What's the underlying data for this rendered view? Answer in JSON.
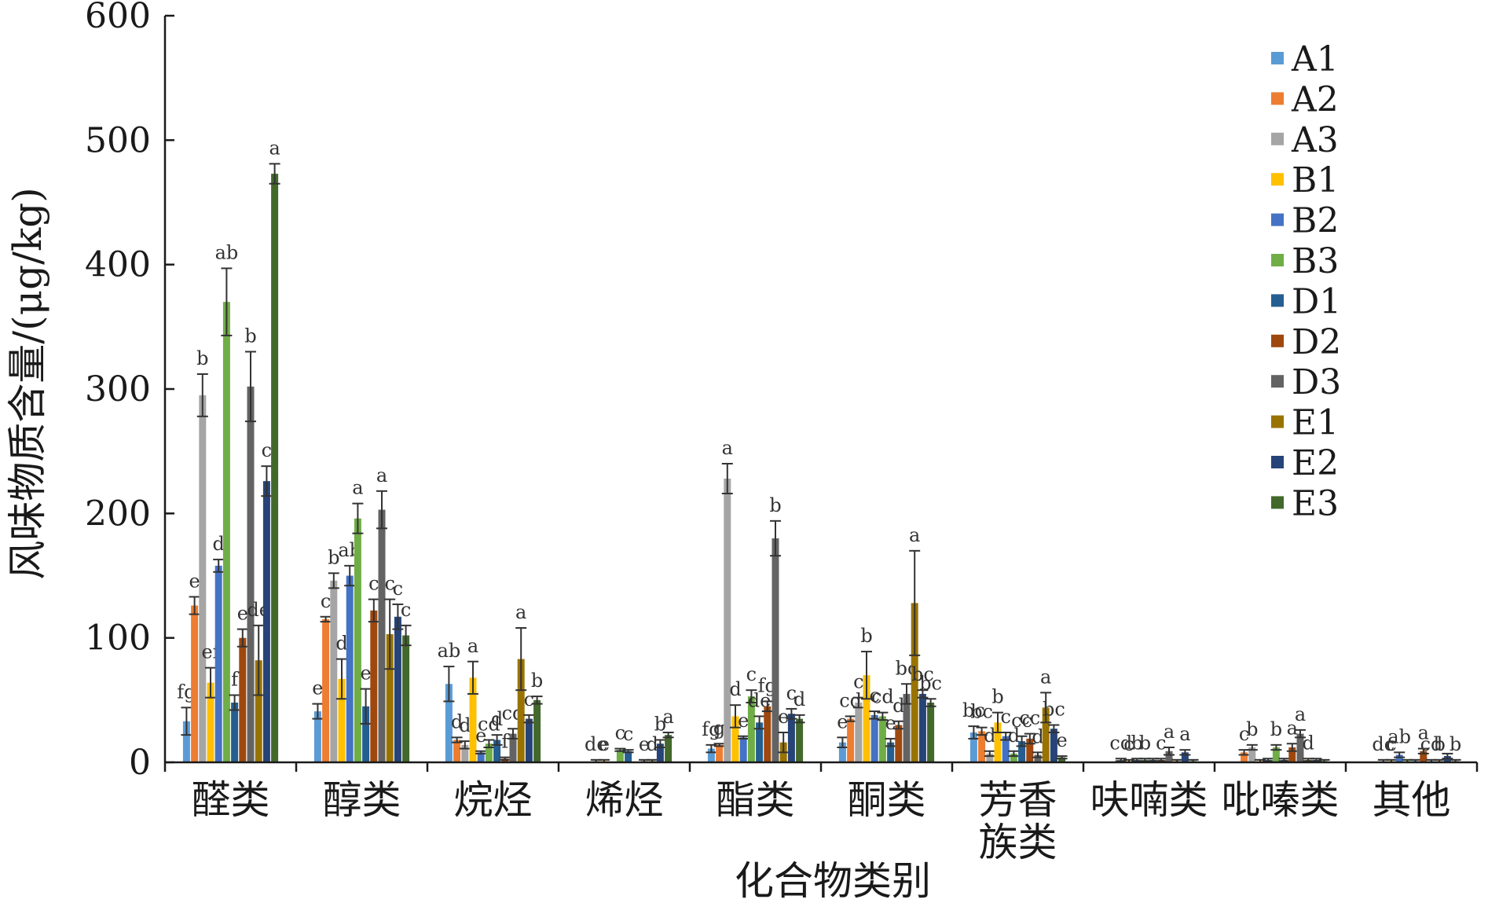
{
  "chart_data": {
    "type": "bar",
    "xlabel": "化合物类别",
    "ylabel": "风味物质含量/(μg/kg)",
    "ylim": [
      0,
      600
    ],
    "yticks": [
      0,
      100,
      200,
      300,
      400,
      500,
      600
    ],
    "grid": false,
    "legend_position": "top-right",
    "categories": [
      [
        "醛类"
      ],
      [
        "醇类"
      ],
      [
        "烷烃"
      ],
      [
        "烯烃"
      ],
      [
        "酯类"
      ],
      [
        "酮类"
      ],
      [
        "芳香",
        "族类"
      ],
      [
        "呋喃类"
      ],
      [
        "吡嗪类"
      ],
      [
        "其他"
      ]
    ],
    "series": [
      {
        "name": "A1",
        "color": "#5b9bd5",
        "values": [
          33,
          41,
          63,
          0,
          11,
          16,
          24,
          0,
          0,
          0
        ],
        "errors": [
          11,
          6,
          14,
          0,
          3,
          4,
          5,
          0,
          0,
          0
        ],
        "letters": [
          "fg",
          "e",
          "ab",
          "",
          "fg",
          "e",
          "bc",
          "",
          "",
          ""
        ]
      },
      {
        "name": "A2",
        "color": "#ed7d31",
        "values": [
          126,
          115,
          18,
          0,
          14,
          35,
          25,
          0,
          8,
          0
        ],
        "errors": [
          7,
          2,
          2,
          0,
          1,
          2,
          3,
          0,
          2,
          0
        ],
        "letters": [
          "e",
          "c",
          "d",
          "",
          "g",
          "cd",
          "bc",
          "",
          "c",
          ""
        ]
      },
      {
        "name": "A3",
        "color": "#a5a5a5",
        "values": [
          295,
          146,
          14,
          1,
          228,
          48,
          7,
          2,
          12,
          1
        ],
        "errors": [
          17,
          6,
          3,
          1,
          12,
          4,
          2,
          1,
          2,
          1
        ],
        "letters": [
          "b",
          "b",
          "d",
          "de",
          "a",
          "c",
          "d",
          "cd",
          "b",
          "dc"
        ]
      },
      {
        "name": "B1",
        "color": "#ffc000",
        "values": [
          64,
          67,
          68,
          1,
          37,
          70,
          32,
          1,
          1,
          1
        ],
        "errors": [
          12,
          16,
          13,
          1,
          9,
          19,
          8,
          1,
          1,
          1
        ],
        "letters": [
          "ef",
          "d",
          "a",
          "e",
          "d",
          "b",
          "b",
          "c",
          "",
          "c"
        ]
      },
      {
        "name": "B2",
        "color": "#4472c4",
        "values": [
          158,
          150,
          8,
          0,
          20,
          38,
          21,
          2,
          2,
          6
        ],
        "errors": [
          5,
          8,
          1,
          0,
          1,
          3,
          3,
          1,
          1,
          2
        ],
        "letters": [
          "d",
          "ab",
          "e",
          "",
          "e",
          "c",
          "c",
          "b",
          "",
          "ab"
        ]
      },
      {
        "name": "B3",
        "color": "#70ad47",
        "values": [
          370,
          196,
          15,
          10,
          53,
          37,
          7,
          2,
          12,
          1
        ],
        "errors": [
          27,
          12,
          3,
          1,
          5,
          3,
          2,
          1,
          2,
          1
        ],
        "letters": [
          "ab",
          "a",
          "cd",
          "c",
          "c",
          "cd",
          "d",
          "b",
          "b",
          ""
        ]
      },
      {
        "name": "D1",
        "color": "#255e91",
        "values": [
          48,
          45,
          18,
          9,
          32,
          16,
          17,
          2,
          2,
          1
        ],
        "errors": [
          6,
          14,
          4,
          1,
          5,
          3,
          4,
          1,
          1,
          1
        ],
        "letters": [
          "f",
          "e",
          "d",
          "c",
          "de",
          "e",
          "cc",
          "",
          "",
          ""
        ]
      },
      {
        "name": "D2",
        "color": "#9e480e",
        "values": [
          100,
          122,
          3,
          0,
          45,
          30,
          19,
          2,
          12,
          9
        ],
        "errors": [
          7,
          9,
          1,
          0,
          4,
          3,
          4,
          1,
          3,
          2
        ],
        "letters": [
          "e",
          "c",
          "f",
          "",
          "fg",
          "d",
          "cc",
          "c",
          "a",
          "a"
        ]
      },
      {
        "name": "D3",
        "color": "#636363",
        "values": [
          302,
          203,
          23,
          1,
          180,
          55,
          6,
          9,
          23,
          1
        ],
        "errors": [
          28,
          15,
          4,
          1,
          14,
          8,
          2,
          3,
          3,
          1
        ],
        "letters": [
          "b",
          "a",
          "cd",
          "e",
          "b",
          "bc",
          "d",
          "a",
          "a",
          "cd"
        ]
      },
      {
        "name": "E1",
        "color": "#997300",
        "values": [
          82,
          103,
          83,
          1,
          16,
          128,
          44,
          1,
          2,
          1
        ],
        "errors": [
          28,
          28,
          25,
          1,
          8,
          42,
          12,
          1,
          1,
          1
        ],
        "letters": [
          "de",
          "c",
          "a",
          "d",
          "e",
          "a",
          "a",
          "",
          "d",
          "b"
        ]
      },
      {
        "name": "E2",
        "color": "#264478",
        "values": [
          226,
          117,
          35,
          15,
          39,
          55,
          27,
          8,
          2,
          5
        ],
        "errors": [
          12,
          10,
          3,
          3,
          4,
          3,
          3,
          2,
          1,
          2
        ],
        "letters": [
          "c",
          "c",
          "c",
          "b",
          "c",
          "bc",
          "bc",
          "a",
          "",
          ""
        ]
      },
      {
        "name": "E3",
        "color": "#43682b",
        "values": [
          473,
          102,
          50,
          22,
          35,
          48,
          4,
          1,
          1,
          1
        ],
        "errors": [
          8,
          8,
          3,
          2,
          3,
          3,
          1,
          1,
          1,
          1
        ],
        "letters": [
          "a",
          "c",
          "b",
          "a",
          "d",
          "bc",
          "e",
          "",
          "",
          "b"
        ]
      }
    ]
  }
}
